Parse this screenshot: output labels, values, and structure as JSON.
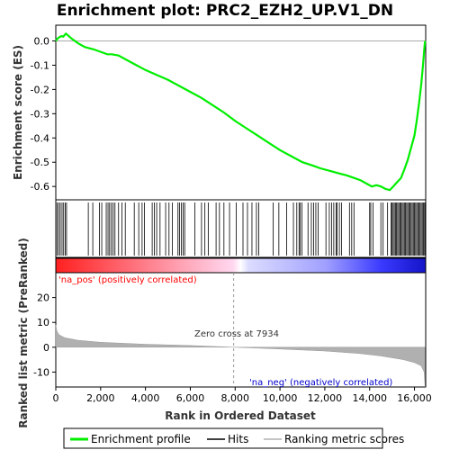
{
  "chart_data": {
    "type": "line",
    "title": "Enrichment plot: PRC2_EZH2_UP.V1_DN",
    "x_label": "Rank in Ordered Dataset",
    "x_range": [
      0,
      16500
    ],
    "x_ticks": [
      0,
      2000,
      4000,
      6000,
      8000,
      10000,
      12000,
      14000,
      16000
    ],
    "x_tick_labels": [
      "0",
      "2,000",
      "4,000",
      "6,000",
      "8,000",
      "10,000",
      "12,000",
      "14,000",
      "16,000"
    ],
    "es_panel": {
      "y_label": "Enrichment score (ES)",
      "y_range": [
        -0.655,
        0.065
      ],
      "y_ticks": [
        0.0,
        -0.1,
        -0.2,
        -0.3,
        -0.4,
        -0.5,
        -0.6
      ],
      "y_tick_labels": [
        "0.0",
        "-0.1",
        "-0.2",
        "-0.3",
        "-0.4",
        "-0.5",
        "-0.6"
      ],
      "series": {
        "name": "Enrichment profile",
        "color": "#00ee00",
        "points": [
          [
            0,
            0.0
          ],
          [
            80,
            0.01
          ],
          [
            150,
            0.015
          ],
          [
            250,
            0.02
          ],
          [
            330,
            0.018
          ],
          [
            450,
            0.03
          ],
          [
            520,
            0.025
          ],
          [
            700,
            0.01
          ],
          [
            1000,
            -0.01
          ],
          [
            1300,
            -0.025
          ],
          [
            1700,
            -0.035
          ],
          [
            2000,
            -0.045
          ],
          [
            2300,
            -0.055
          ],
          [
            2500,
            -0.055
          ],
          [
            2800,
            -0.06
          ],
          [
            3200,
            -0.08
          ],
          [
            3600,
            -0.1
          ],
          [
            4000,
            -0.12
          ],
          [
            4500,
            -0.14
          ],
          [
            5000,
            -0.16
          ],
          [
            5500,
            -0.185
          ],
          [
            6000,
            -0.21
          ],
          [
            6500,
            -0.235
          ],
          [
            7000,
            -0.265
          ],
          [
            7500,
            -0.295
          ],
          [
            8000,
            -0.33
          ],
          [
            8500,
            -0.36
          ],
          [
            9000,
            -0.39
          ],
          [
            9500,
            -0.42
          ],
          [
            10000,
            -0.45
          ],
          [
            10500,
            -0.475
          ],
          [
            11000,
            -0.5
          ],
          [
            11500,
            -0.515
          ],
          [
            11800,
            -0.525
          ],
          [
            12200,
            -0.535
          ],
          [
            12600,
            -0.545
          ],
          [
            13000,
            -0.555
          ],
          [
            13300,
            -0.565
          ],
          [
            13600,
            -0.575
          ],
          [
            13900,
            -0.59
          ],
          [
            14100,
            -0.6
          ],
          [
            14300,
            -0.595
          ],
          [
            14500,
            -0.6
          ],
          [
            14700,
            -0.61
          ],
          [
            14900,
            -0.615
          ],
          [
            15050,
            -0.6
          ],
          [
            15200,
            -0.585
          ],
          [
            15400,
            -0.565
          ],
          [
            15550,
            -0.53
          ],
          [
            15700,
            -0.49
          ],
          [
            15850,
            -0.44
          ],
          [
            16000,
            -0.39
          ],
          [
            16100,
            -0.33
          ],
          [
            16200,
            -0.26
          ],
          [
            16300,
            -0.18
          ],
          [
            16380,
            -0.1
          ],
          [
            16440,
            -0.03
          ],
          [
            16470,
            0.0
          ]
        ]
      }
    },
    "hits": {
      "name": "Hits",
      "color": "#000000",
      "ranks": [
        60,
        130,
        200,
        280,
        350,
        420,
        480,
        1450,
        1650,
        1950,
        2050,
        2250,
        2330,
        2400,
        2480,
        2560,
        2640,
        2800,
        2950,
        3100,
        3500,
        3700,
        3850,
        3950,
        4300,
        4400,
        4500,
        4650,
        4900,
        5050,
        5200,
        5450,
        5520,
        5600,
        5680,
        5750,
        6200,
        6500,
        6650,
        6800,
        7150,
        7300,
        7500,
        7750,
        8050,
        8350,
        8550,
        8750,
        8950,
        9050,
        9700,
        9950,
        10300,
        10600,
        10750,
        10850,
        10900,
        10980,
        11250,
        11400,
        11500,
        11600,
        11700,
        12050,
        12200,
        12300,
        12400,
        12500,
        12550,
        12650,
        12750,
        13100,
        13200,
        13300,
        14000,
        14050,
        14150,
        14500,
        14600,
        14800,
        14950,
        15000,
        15050,
        15100,
        15150,
        15200,
        15250,
        15300,
        15350,
        15400,
        15450,
        15500,
        15550,
        15600,
        15650,
        15700,
        15750,
        15800,
        15850,
        15900,
        15950,
        16000,
        16050,
        16100,
        16150,
        16200,
        16250,
        16300,
        16350,
        16400,
        16450,
        16480
      ]
    },
    "rank_panel": {
      "y_label": "Ranked list metric (PreRanked)",
      "y_range": [
        -16,
        30
      ],
      "y_ticks": [
        20,
        10,
        0,
        -10
      ],
      "y_tick_labels": [
        "20",
        "10",
        "0",
        "-10"
      ],
      "series": {
        "name": "Ranking metric scores",
        "color": "#b0b0b0",
        "points": [
          [
            0,
            9
          ],
          [
            50,
            6.5
          ],
          [
            150,
            5
          ],
          [
            400,
            3.8
          ],
          [
            1000,
            2.8
          ],
          [
            2000,
            2.0
          ],
          [
            4000,
            1.2
          ],
          [
            6000,
            0.7
          ],
          [
            7934,
            0.0
          ],
          [
            10000,
            -0.7
          ],
          [
            12000,
            -1.5
          ],
          [
            13500,
            -2.5
          ],
          [
            14500,
            -3.5
          ],
          [
            15500,
            -5.0
          ],
          [
            16000,
            -6.2
          ],
          [
            16300,
            -7.5
          ],
          [
            16430,
            -10
          ],
          [
            16470,
            -16
          ]
        ]
      },
      "pos_label": "'na_pos' (positively correlated)",
      "neg_label": "'na_neg' (negatively correlated)",
      "pos_color": "#ff0000",
      "neg_color": "#0000cc",
      "zero_cross_label": "Zero cross at 7934",
      "zero_cross": 7934
    },
    "legend": {
      "placement": "bottom",
      "items": [
        {
          "label": "Enrichment profile",
          "color": "#00ee00"
        },
        {
          "label": "Hits",
          "color": "#000000"
        },
        {
          "label": "Ranking metric scores",
          "color": "#b0b0b0"
        }
      ]
    }
  }
}
